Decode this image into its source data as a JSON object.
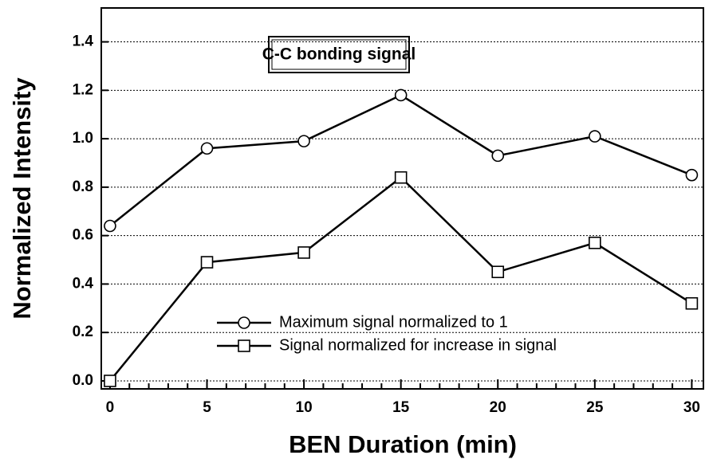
{
  "chart_data": {
    "type": "line",
    "xlabel": "BEN Duration (min)",
    "ylabel": "Normalized Intensity",
    "annotation": "C-C bonding signal",
    "x": [
      0,
      5,
      10,
      15,
      20,
      25,
      30
    ],
    "series": [
      {
        "name": "Maximum signal normalized to 1",
        "marker": "circle",
        "color": "#000000",
        "values": [
          0.64,
          0.96,
          0.99,
          1.18,
          0.93,
          1.01,
          0.85
        ]
      },
      {
        "name": "Signal normalized for increase in signal",
        "marker": "square",
        "color": "#000000",
        "values": [
          0.0,
          0.49,
          0.53,
          0.84,
          0.45,
          0.57,
          0.32
        ]
      }
    ],
    "xlim": [
      -0.45,
      30.6
    ],
    "ylim": [
      -0.033,
      1.54
    ],
    "xticks": [
      0,
      5,
      10,
      15,
      20,
      25,
      30
    ],
    "xminorticks": [
      1,
      2,
      3,
      4,
      6,
      7,
      8,
      9,
      11,
      12,
      13,
      14,
      16,
      17,
      18,
      19,
      21,
      22,
      23,
      24,
      26,
      27,
      28,
      29
    ],
    "yticks": [
      {
        "value": 0,
        "label": "0.0"
      },
      0.2,
      0.4,
      0.6,
      0.8,
      {
        "value": 1,
        "label": "1.0"
      },
      1.2,
      1.4
    ],
    "grid": true
  }
}
